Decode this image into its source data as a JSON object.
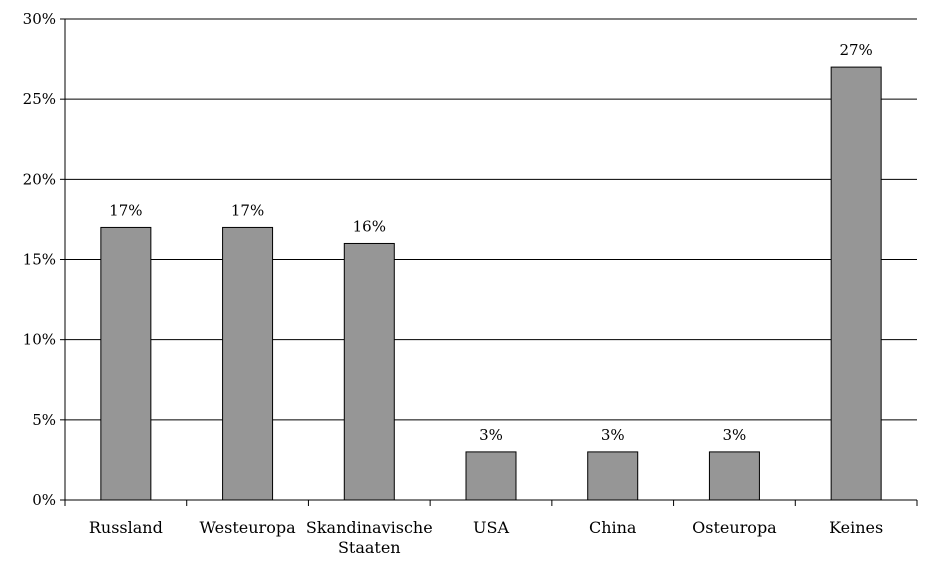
{
  "chart_data": {
    "type": "bar",
    "categories": [
      "Russland",
      "Westeuropa",
      "Skandinavische Staaten",
      "USA",
      "China",
      "Osteuropa",
      "Keines"
    ],
    "category_lines": [
      [
        "Russland"
      ],
      [
        "Westeuropa"
      ],
      [
        "Skandinavische",
        "Staaten"
      ],
      [
        "USA"
      ],
      [
        "China"
      ],
      [
        "Osteuropa"
      ],
      [
        "Keines"
      ]
    ],
    "values": [
      17,
      17,
      16,
      3,
      3,
      3,
      27
    ],
    "data_labels": [
      "17%",
      "17%",
      "16%",
      "3%",
      "3%",
      "3%",
      "27%"
    ],
    "yticks": [
      0,
      5,
      10,
      15,
      20,
      25,
      30
    ],
    "ytick_labels": [
      "0%",
      "5%",
      "10%",
      "15%",
      "20%",
      "25%",
      "30%"
    ],
    "ylim": [
      0,
      30
    ],
    "grid": true,
    "legend": "none",
    "colors": {
      "bar": "#969696",
      "bar_stroke": "#000000",
      "grid": "#000000",
      "axis": "#000000"
    }
  }
}
